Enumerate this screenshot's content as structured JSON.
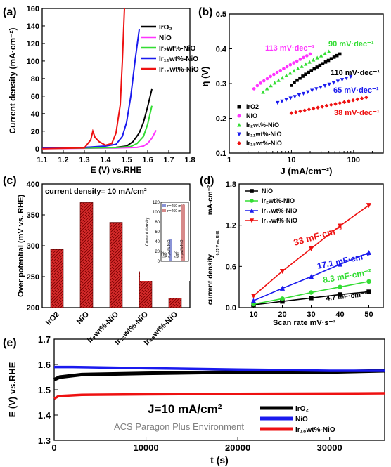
{
  "watermark": "ACS Paragon Plus Environment",
  "colors": {
    "black": "#000000",
    "magenta": "#ff33ff",
    "green": "#33dd33",
    "blue": "#1a1aee",
    "red": "#ee1111",
    "bar": "#d42a2a"
  },
  "chart_data": [
    {
      "panel": "(a)",
      "type": "line",
      "xlabel": "E (V) vs.RHE",
      "ylabel": "Current density (mA·cm⁻²)",
      "xlim": [
        1.1,
        1.8
      ],
      "ylim": [
        -5,
        160
      ],
      "xticks": [
        1.1,
        1.2,
        1.3,
        1.4,
        1.5,
        1.6,
        1.7,
        1.8
      ],
      "yticks": [
        0,
        20,
        40,
        60,
        80,
        100,
        120,
        140,
        160
      ],
      "legend": [
        "IrO₂",
        "NiO",
        "Ir₂wt%-NiO",
        "Ir₁₁wt%-NiO",
        "Ir₁₈wt%-NiO"
      ],
      "series": [
        {
          "name": "IrO₂",
          "color": "#000000",
          "x": [
            1.1,
            1.3,
            1.45,
            1.5,
            1.53,
            1.56,
            1.58,
            1.6,
            1.62
          ],
          "y": [
            0.5,
            0.8,
            1.5,
            3,
            8,
            18,
            30,
            48,
            68
          ]
        },
        {
          "name": "NiO",
          "color": "#ff33ff",
          "x": [
            1.1,
            1.3,
            1.45,
            1.55,
            1.58,
            1.6,
            1.62,
            1.64
          ],
          "y": [
            0,
            0.5,
            0.8,
            1.5,
            3,
            6,
            12,
            21
          ]
        },
        {
          "name": "Ir₂wt%-NiO",
          "color": "#33dd33",
          "x": [
            1.1,
            1.3,
            1.45,
            1.52,
            1.55,
            1.58,
            1.6,
            1.62
          ],
          "y": [
            0.2,
            0.8,
            1.3,
            2.5,
            6,
            14,
            28,
            49
          ]
        },
        {
          "name": "Ir₁₁wt%-NiO",
          "color": "#1a1aee",
          "x": [
            1.1,
            1.3,
            1.4,
            1.45,
            1.48,
            1.5,
            1.52,
            1.54,
            1.56
          ],
          "y": [
            0.5,
            1.5,
            3,
            5,
            14,
            30,
            60,
            100,
            136
          ]
        },
        {
          "name": "Ir₁₈wt%-NiO",
          "color": "#ee1111",
          "x": [
            1.1,
            1.3,
            1.33,
            1.34,
            1.35,
            1.37,
            1.4,
            1.43,
            1.45,
            1.47,
            1.48,
            1.49
          ],
          "y": [
            0,
            1,
            10,
            20,
            13,
            8,
            4,
            6,
            18,
            50,
            100,
            160
          ]
        }
      ]
    },
    {
      "panel": "(b)",
      "type": "scatter",
      "xlabel": "J (mA/cm⁻²)",
      "ylabel": "η (V)",
      "xscale": "log",
      "xlim": [
        1,
        300
      ],
      "ylim": [
        0.1,
        0.5
      ],
      "xticks": [
        1,
        10,
        100
      ],
      "xticklabels": [
        "1",
        "10",
        "100"
      ],
      "yticks": [
        0.1,
        0.2,
        0.3,
        0.4,
        0.5
      ],
      "legend": [
        "IrO2",
        "NiO",
        "Ir₂wt%-NiO",
        "Ir₁₁wt%-NiO",
        "Ir₁₈wt%-NiO"
      ],
      "annotations": [
        "113 mV·dec⁻¹",
        "90 mV·dec⁻¹",
        "110 mV·dec⁻¹",
        "65 mV·dec⁻¹",
        "38 mV·dec⁻¹"
      ],
      "series": [
        {
          "name": "IrO2",
          "color": "#000000",
          "marker": "square",
          "x": [
            10,
            60
          ],
          "y": [
            0.295,
            0.385
          ]
        },
        {
          "name": "NiO",
          "color": "#ff33ff",
          "marker": "circle",
          "x": [
            2.5,
            20
          ],
          "y": [
            0.285,
            0.385
          ]
        },
        {
          "name": "Ir₂wt%-NiO",
          "color": "#33dd33",
          "marker": "triangle-up",
          "x": [
            3.5,
            40
          ],
          "y": [
            0.275,
            0.392
          ]
        },
        {
          "name": "Ir₁₁wt%-NiO",
          "color": "#1a1aee",
          "marker": "triangle-down",
          "x": [
            6,
            90
          ],
          "y": [
            0.245,
            0.32
          ]
        },
        {
          "name": "Ir₁₈wt%-NiO",
          "color": "#ee1111",
          "marker": "diamond",
          "x": [
            10,
            160
          ],
          "y": [
            0.215,
            0.26
          ]
        }
      ]
    },
    {
      "panel": "(c)",
      "type": "bar",
      "title": "current density= 10 mA/cm²",
      "ylabel": "Over potential (mV vs. RHE)",
      "ylim": [
        200,
        400
      ],
      "yticks": [
        200,
        250,
        300,
        350,
        400
      ],
      "categories": [
        "IrO2",
        "NiO",
        "Ir₂wt%-NiO",
        "Ir₁₁wt%-NiO",
        "Ir₁₈wt%-NiO"
      ],
      "values": [
        294,
        370,
        338,
        258,
        215
      ],
      "inset": {
        "ylabel": "Current density",
        "ylim": [
          0,
          120
        ],
        "yticks": [
          0,
          20,
          40,
          60,
          80,
          100,
          120
        ],
        "legend": [
          "η=250 mV",
          "η=260 mV"
        ],
        "groups": [
          "IrO2",
          "NiO",
          "Ir₁₈wt%-NiO",
          "IrO2",
          "NiO",
          "Ir₁₈wt%-NiO"
        ],
        "values": [
          0,
          0,
          45,
          0,
          0,
          115
        ]
      }
    },
    {
      "panel": "(d)",
      "type": "line",
      "xlabel": "Scan rate mV·s⁻¹",
      "ylabel": "current density",
      "ylabel_sub": "0.75 V vs. RHE",
      "ylabel_unit": "mA·cm⁻²",
      "xlim": [
        5,
        55
      ],
      "ylim": [
        0,
        1.8
      ],
      "xticks": [
        10,
        20,
        30,
        40,
        50
      ],
      "yticks": [
        0.0,
        0.6,
        1.2,
        1.8
      ],
      "legend": [
        "NiO",
        "Ir₂wt%-NiO",
        "Ir₁₁wt%-NiO",
        "Ir₁₈wt%-NiO"
      ],
      "annotations": [
        "33 mF·cm⁻²",
        "17.1 mF·cm⁻²",
        "8.3 mF·cm⁻²",
        "4.7 mF·cm⁻²"
      ],
      "series": [
        {
          "name": "NiO",
          "color": "#000000",
          "marker": "square",
          "x": [
            10,
            20,
            30,
            40,
            50
          ],
          "y": [
            0.04,
            0.09,
            0.14,
            0.19,
            0.23
          ]
        },
        {
          "name": "Ir₂wt%-NiO",
          "color": "#33dd33",
          "marker": "circle",
          "x": [
            10,
            20,
            30,
            40,
            50
          ],
          "y": [
            0.05,
            0.13,
            0.22,
            0.3,
            0.38
          ]
        },
        {
          "name": "Ir₁₁wt%-NiO",
          "color": "#1a1aee",
          "marker": "triangle-up",
          "x": [
            10,
            20,
            30,
            40,
            50
          ],
          "y": [
            0.1,
            0.28,
            0.45,
            0.63,
            0.8
          ]
        },
        {
          "name": "Ir₁₈wt%-NiO",
          "color": "#ee1111",
          "marker": "triangle-down",
          "x": [
            10,
            20,
            30,
            40,
            50
          ],
          "y": [
            0.17,
            0.53,
            0.86,
            1.19,
            1.49
          ]
        }
      ]
    },
    {
      "panel": "(e)",
      "type": "line",
      "xlabel": "t (s)",
      "ylabel": "E (V) vs.RHE",
      "annotation": "J=10 mA/cm²",
      "xlim": [
        0,
        36000
      ],
      "ylim": [
        1.3,
        1.7
      ],
      "xticks": [
        0,
        10000,
        20000,
        30000
      ],
      "yticks": [
        1.3,
        1.4,
        1.5,
        1.6,
        1.7
      ],
      "legend": [
        "IrO₂",
        "NiO",
        "Ir₁₈wt%-NiO"
      ],
      "series": [
        {
          "name": "IrO₂",
          "color": "#000000",
          "x": [
            0,
            600,
            3000,
            10000,
            20000,
            30000,
            36000
          ],
          "y": [
            1.54,
            1.55,
            1.56,
            1.565,
            1.57,
            1.57,
            1.575
          ]
        },
        {
          "name": "NiO",
          "color": "#1a1aee",
          "x": [
            0,
            2000,
            10000,
            20000,
            30000,
            36000
          ],
          "y": [
            1.59,
            1.59,
            1.585,
            1.58,
            1.575,
            1.575
          ]
        },
        {
          "name": "Ir₁₈wt%-NiO",
          "color": "#ee1111",
          "x": [
            0,
            500,
            3000,
            10000,
            20000,
            30000,
            36000
          ],
          "y": [
            1.465,
            1.475,
            1.48,
            1.482,
            1.484,
            1.485,
            1.486
          ]
        }
      ]
    }
  ]
}
